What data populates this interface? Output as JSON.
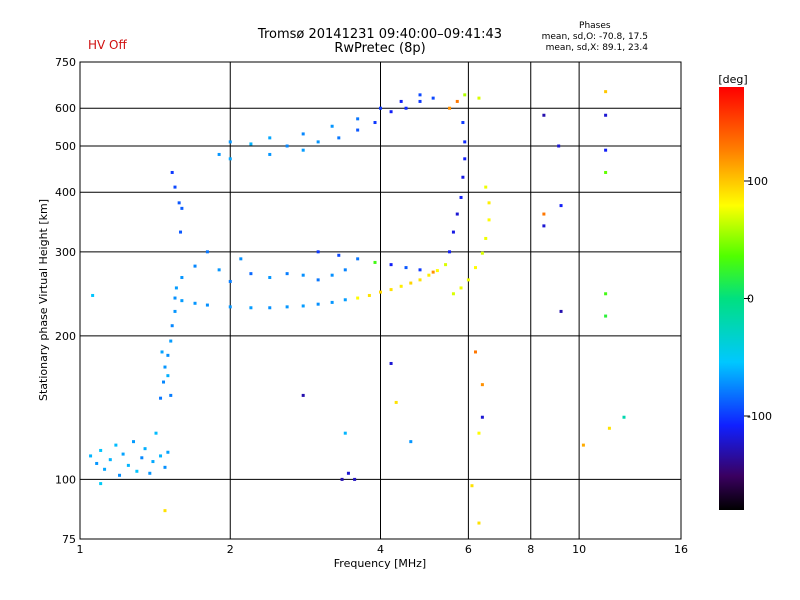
{
  "header": {
    "title_line1": "Tromsø 20141231 09:40:00–09:41:43",
    "title_line2": "RwPretec (8p)",
    "status": "HV Off",
    "phase_title": "Phases",
    "phase_line1": "mean, sd,O: -70.8, 17.5",
    "phase_line2": "mean, sd,X:  89.1, 23.4"
  },
  "colors": {
    "status": "#d01010",
    "grid": "#000000"
  },
  "chart_data": {
    "type": "scatter",
    "xlabel": "Frequency [MHz]",
    "ylabel": "Stationary phase Virtual Height [km]",
    "x_scale": "log",
    "y_scale": "log",
    "xlim": [
      1,
      16
    ],
    "ylim": [
      75,
      750
    ],
    "x_ticks": [
      1,
      2,
      4,
      6,
      8,
      10,
      16
    ],
    "y_ticks": [
      75,
      100,
      200,
      300,
      400,
      500,
      600,
      750
    ],
    "x_grid": [
      1,
      2,
      4,
      6,
      8,
      10,
      16
    ],
    "y_grid": [
      100,
      200,
      300,
      400,
      500,
      600,
      750
    ],
    "grid": true,
    "colorbar": {
      "label": "[deg]",
      "range": [
        -180,
        180
      ],
      "ticks": [
        -100,
        0,
        100
      ]
    },
    "series": [
      {
        "points": [
          [
            1.05,
            112,
            -60
          ],
          [
            1.08,
            108,
            -70
          ],
          [
            1.1,
            115,
            -55
          ],
          [
            1.12,
            105,
            -65
          ],
          [
            1.15,
            110,
            -60
          ],
          [
            1.18,
            118,
            -58
          ],
          [
            1.2,
            102,
            -72
          ],
          [
            1.22,
            113,
            -66
          ],
          [
            1.25,
            107,
            -60
          ],
          [
            1.28,
            120,
            -68
          ],
          [
            1.3,
            104,
            -55
          ],
          [
            1.33,
            111,
            -75
          ],
          [
            1.35,
            116,
            -62
          ],
          [
            1.38,
            103,
            -70
          ],
          [
            1.4,
            109,
            -64
          ],
          [
            1.42,
            125,
            -58
          ],
          [
            1.45,
            112,
            -60
          ],
          [
            1.48,
            106,
            -72
          ],
          [
            1.5,
            114,
            -66
          ],
          [
            1.1,
            98,
            -50
          ],
          [
            1.06,
            243,
            -55
          ],
          [
            1.45,
            148,
            -80
          ],
          [
            1.47,
            160,
            -75
          ],
          [
            1.48,
            172,
            -70
          ],
          [
            1.5,
            182,
            -72
          ],
          [
            1.52,
            195,
            -68
          ],
          [
            1.53,
            210,
            -75
          ],
          [
            1.55,
            225,
            -70
          ],
          [
            1.5,
            165,
            -62
          ],
          [
            1.46,
            185,
            -66
          ],
          [
            1.52,
            150,
            -78
          ],
          [
            1.55,
            240,
            -72
          ],
          [
            1.56,
            252,
            -68
          ],
          [
            1.55,
            410,
            -95
          ],
          [
            1.58,
            380,
            -90
          ],
          [
            1.6,
            370,
            -88
          ],
          [
            1.53,
            440,
            -100
          ],
          [
            1.59,
            330,
            -90
          ],
          [
            1.6,
            237,
            -68
          ],
          [
            1.7,
            234,
            -70
          ],
          [
            1.8,
            232,
            -72
          ],
          [
            2.0,
            230,
            -70
          ],
          [
            2.2,
            229,
            -68
          ],
          [
            2.4,
            229,
            -72
          ],
          [
            2.6,
            230,
            -70
          ],
          [
            2.8,
            231,
            -68
          ],
          [
            3.0,
            233,
            -72
          ],
          [
            3.2,
            235,
            -70
          ],
          [
            3.4,
            238,
            -68
          ],
          [
            1.6,
            265,
            -70
          ],
          [
            1.7,
            280,
            -75
          ],
          [
            1.8,
            300,
            -80
          ],
          [
            1.9,
            275,
            -70
          ],
          [
            2.0,
            260,
            -78
          ],
          [
            2.1,
            290,
            -72
          ],
          [
            2.2,
            270,
            -85
          ],
          [
            2.4,
            265,
            -70
          ],
          [
            2.6,
            270,
            -78
          ],
          [
            2.8,
            268,
            -72
          ],
          [
            3.0,
            262,
            -80
          ],
          [
            3.2,
            268,
            -72
          ],
          [
            3.4,
            275,
            -76
          ],
          [
            3.6,
            240,
            80
          ],
          [
            3.8,
            243,
            90
          ],
          [
            4.0,
            247,
            95
          ],
          [
            4.2,
            250,
            90
          ],
          [
            4.4,
            254,
            85
          ],
          [
            4.6,
            258,
            95
          ],
          [
            4.8,
            262,
            90
          ],
          [
            5.0,
            268,
            85
          ],
          [
            5.2,
            274,
            80
          ],
          [
            5.4,
            282,
            70
          ],
          [
            5.6,
            245,
            70
          ],
          [
            5.8,
            252,
            75
          ],
          [
            6.0,
            262,
            75
          ],
          [
            6.2,
            278,
            80
          ],
          [
            6.4,
            298,
            70
          ],
          [
            6.5,
            320,
            75
          ],
          [
            6.6,
            350,
            80
          ],
          [
            6.6,
            380,
            85
          ],
          [
            6.5,
            410,
            75
          ],
          [
            5.5,
            300,
            -110
          ],
          [
            5.6,
            330,
            -115
          ],
          [
            5.7,
            360,
            -120
          ],
          [
            5.8,
            390,
            -110
          ],
          [
            5.85,
            430,
            -115
          ],
          [
            5.9,
            470,
            -110
          ],
          [
            5.9,
            510,
            -105
          ],
          [
            5.85,
            560,
            -100
          ],
          [
            3.0,
            300,
            -100
          ],
          [
            3.3,
            295,
            -95
          ],
          [
            3.6,
            290,
            -80
          ],
          [
            3.9,
            285,
            30
          ],
          [
            4.2,
            282,
            -110
          ],
          [
            4.5,
            278,
            -90
          ],
          [
            4.8,
            275,
            -100
          ],
          [
            5.1,
            272,
            120
          ],
          [
            1.9,
            480,
            -70
          ],
          [
            2.0,
            470,
            -65
          ],
          [
            2.2,
            505,
            -60
          ],
          [
            2.4,
            480,
            -70
          ],
          [
            2.6,
            500,
            -75
          ],
          [
            2.8,
            490,
            -68
          ],
          [
            3.0,
            510,
            -70
          ],
          [
            3.3,
            520,
            -80
          ],
          [
            3.6,
            540,
            -90
          ],
          [
            3.9,
            560,
            -100
          ],
          [
            4.2,
            590,
            -110
          ],
          [
            4.5,
            600,
            -105
          ],
          [
            4.8,
            620,
            -100
          ],
          [
            5.1,
            630,
            -95
          ],
          [
            2.0,
            510,
            -70
          ],
          [
            2.4,
            520,
            -65
          ],
          [
            2.8,
            530,
            -75
          ],
          [
            3.2,
            550,
            -70
          ],
          [
            3.6,
            570,
            -80
          ],
          [
            4.0,
            600,
            -100
          ],
          [
            4.4,
            620,
            -110
          ],
          [
            4.8,
            640,
            -95
          ],
          [
            5.5,
            600,
            120
          ],
          [
            5.7,
            620,
            130
          ],
          [
            5.9,
            640,
            60
          ],
          [
            6.3,
            630,
            70
          ],
          [
            3.35,
            100,
            -130
          ],
          [
            3.45,
            103,
            -120
          ],
          [
            3.55,
            100,
            -125
          ],
          [
            3.4,
            125,
            -60
          ],
          [
            2.8,
            150,
            -130
          ],
          [
            4.3,
            145,
            90
          ],
          [
            4.6,
            120,
            -70
          ],
          [
            4.2,
            175,
            -120
          ],
          [
            6.3,
            125,
            80
          ],
          [
            6.4,
            135,
            -120
          ],
          [
            6.4,
            158,
            120
          ],
          [
            6.2,
            185,
            130
          ],
          [
            6.1,
            97,
            90
          ],
          [
            6.3,
            81,
            90
          ],
          [
            10.2,
            118,
            110
          ],
          [
            12.3,
            135,
            -20
          ],
          [
            11.5,
            128,
            90
          ],
          [
            1.48,
            86,
            90
          ],
          [
            8.5,
            340,
            -120
          ],
          [
            8.5,
            360,
            130
          ],
          [
            9.2,
            375,
            -110
          ],
          [
            9.2,
            225,
            -130
          ],
          [
            8.5,
            580,
            -130
          ],
          [
            9.1,
            500,
            -120
          ],
          [
            11.3,
            650,
            100
          ],
          [
            11.3,
            580,
            -120
          ],
          [
            11.3,
            490,
            -110
          ],
          [
            11.3,
            440,
            40
          ],
          [
            11.3,
            245,
            30
          ],
          [
            11.3,
            220,
            20
          ]
        ]
      }
    ]
  }
}
